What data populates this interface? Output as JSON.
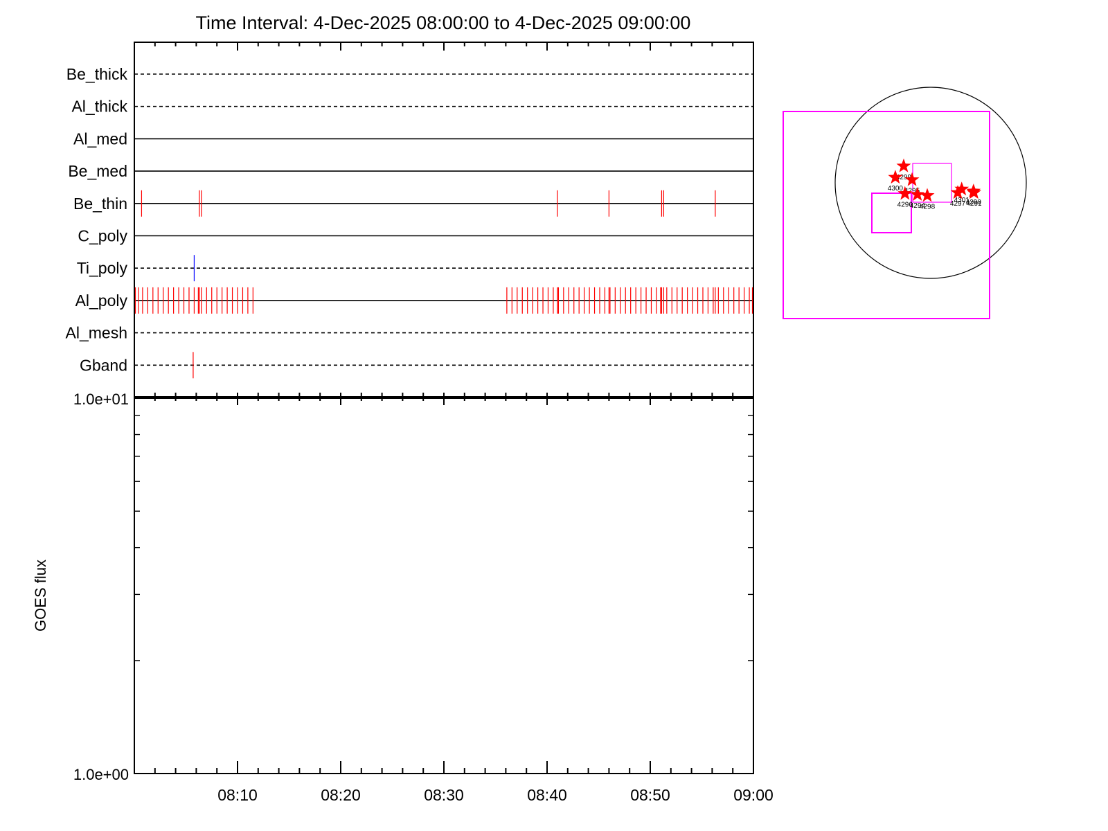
{
  "title": "Time Interval:  4-Dec-2025 08:00:00 to  4-Dec-2025 09:00:00",
  "colors": {
    "axis": "#000000",
    "event_red": "#ff0000",
    "event_blue": "#0000ff",
    "fov_magenta": "#ff00ff",
    "star_red": "#ff0000",
    "disk": "#000000"
  },
  "chart_data": [
    {
      "type": "timeline",
      "time_range": [
        "08:00",
        "09:00"
      ],
      "channels": [
        {
          "name": "Be_thick",
          "line_style": "dashed",
          "events": []
        },
        {
          "name": "Al_thick",
          "line_style": "dashed",
          "events": []
        },
        {
          "name": "Al_med",
          "line_style": "solid",
          "events": []
        },
        {
          "name": "Be_med",
          "line_style": "solid",
          "events": []
        },
        {
          "name": "Be_thin",
          "line_style": "solid",
          "color": "red",
          "events": [
            0.7,
            6.3,
            6.5,
            41.0,
            46.0,
            51.1,
            51.3,
            56.3
          ]
        },
        {
          "name": "C_poly",
          "line_style": "solid",
          "events": []
        },
        {
          "name": "Ti_poly",
          "line_style": "dashed",
          "color": "blue",
          "events": [
            5.8
          ]
        },
        {
          "name": "Al_poly",
          "line_style": "solid",
          "color": "red",
          "events": [
            0.1,
            0.4,
            0.8,
            1.3,
            1.8,
            2.3,
            2.8,
            3.3,
            3.8,
            4.3,
            4.8,
            5.3,
            5.8,
            6.2,
            6.3,
            6.5,
            7.0,
            7.5,
            8.0,
            8.5,
            9.0,
            9.5,
            10.0,
            10.5,
            11.0,
            11.5,
            36.1,
            36.6,
            37.1,
            37.6,
            38.1,
            38.6,
            39.1,
            39.6,
            40.1,
            40.6,
            41.0,
            41.1,
            41.6,
            42.1,
            42.6,
            43.1,
            43.6,
            44.1,
            44.6,
            45.1,
            45.6,
            46.0,
            46.1,
            46.6,
            47.1,
            47.6,
            48.1,
            48.6,
            49.1,
            49.6,
            50.1,
            50.6,
            51.0,
            51.1,
            51.3,
            51.6,
            52.1,
            52.6,
            53.1,
            53.6,
            54.1,
            54.6,
            55.1,
            55.6,
            56.1,
            56.3,
            56.6,
            57.1,
            57.6,
            58.1,
            58.6,
            59.1,
            59.6,
            59.9
          ]
        },
        {
          "name": "Al_mesh",
          "line_style": "dashed",
          "events": []
        },
        {
          "name": "Gband",
          "line_style": "dashed",
          "color": "red",
          "events": [
            5.7
          ]
        }
      ]
    },
    {
      "type": "line",
      "ylabel": "GOES flux",
      "yscale": "log",
      "ylim": [
        1.0,
        10.0
      ],
      "ytick_labels": [
        "1.0e+00",
        "1.0e+01"
      ],
      "xlim": [
        "08:00",
        "09:00"
      ],
      "xtick_labels": [
        "08:10",
        "08:20",
        "08:30",
        "08:40",
        "08:50",
        "09:00"
      ],
      "series": []
    },
    {
      "type": "scatter",
      "regions": [
        {
          "label": "4299",
          "x": -275,
          "y": 170
        },
        {
          "label": "4300",
          "x": -360,
          "y": 55
        },
        {
          "label": "4295",
          "x": -190,
          "y": 30
        },
        {
          "label": "4296",
          "x": -262,
          "y": -110
        },
        {
          "label": "4294",
          "x": -135,
          "y": -120
        },
        {
          "label": "4298",
          "x": -35,
          "y": -130
        },
        {
          "label": "4297",
          "x": 275,
          "y": -100
        },
        {
          "label": "4301",
          "x": 315,
          "y": -65
        },
        {
          "label": "4290",
          "x": 435,
          "y": -85
        },
        {
          "label": "4291",
          "x": 440,
          "y": -100
        }
      ]
    }
  ]
}
